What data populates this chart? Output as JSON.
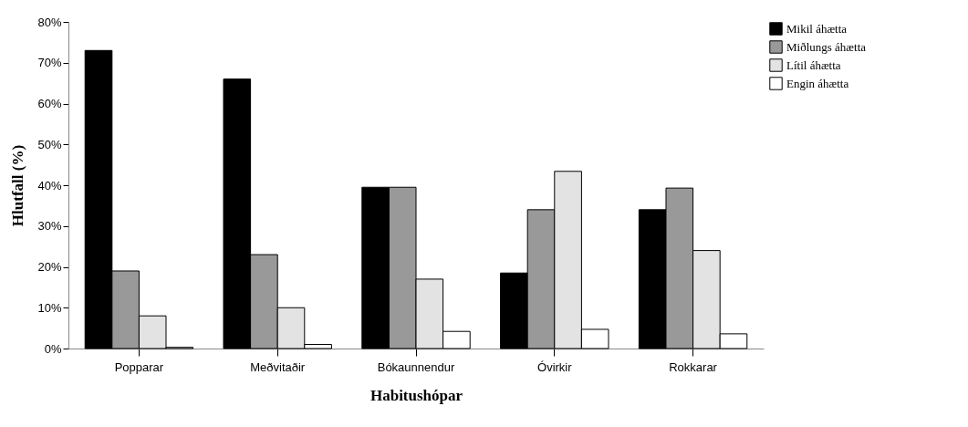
{
  "chart_data": {
    "type": "bar",
    "xlabel": "Habitushópar",
    "ylabel": "Hlutfall (%)",
    "categories": [
      "Popparar",
      "Meðvitaðir",
      "Bókaunnendur",
      "Óvirkir",
      "Rokkarar"
    ],
    "series": [
      {
        "name": "Mikil áhætta",
        "color": "#000000",
        "values": [
          73,
          66,
          39.5,
          18.5,
          34
        ]
      },
      {
        "name": "Miðlungs áhætta",
        "color": "#999999",
        "values": [
          19,
          23,
          39.5,
          34,
          39.3
        ]
      },
      {
        "name": "Lítil áhætta",
        "color": "#e3e3e3",
        "values": [
          8,
          10,
          17,
          43.4,
          24
        ]
      },
      {
        "name": "Engin áhætta",
        "color": "#ffffff",
        "values": [
          0.3,
          1,
          4.2,
          4.7,
          3.6
        ]
      }
    ],
    "ylim": [
      0,
      80
    ],
    "yticks": [
      {
        "value": 0,
        "label": "0%"
      },
      {
        "value": 10,
        "label": "10%"
      },
      {
        "value": 20,
        "label": "20%"
      },
      {
        "value": 30,
        "label": "30%"
      },
      {
        "value": 40,
        "label": "40%"
      },
      {
        "value": 50,
        "label": "50%"
      },
      {
        "value": 60,
        "label": "60%"
      },
      {
        "value": 70,
        "label": "70%"
      },
      {
        "value": 80,
        "label": "80%"
      }
    ],
    "grid": false,
    "legend": "top right"
  }
}
